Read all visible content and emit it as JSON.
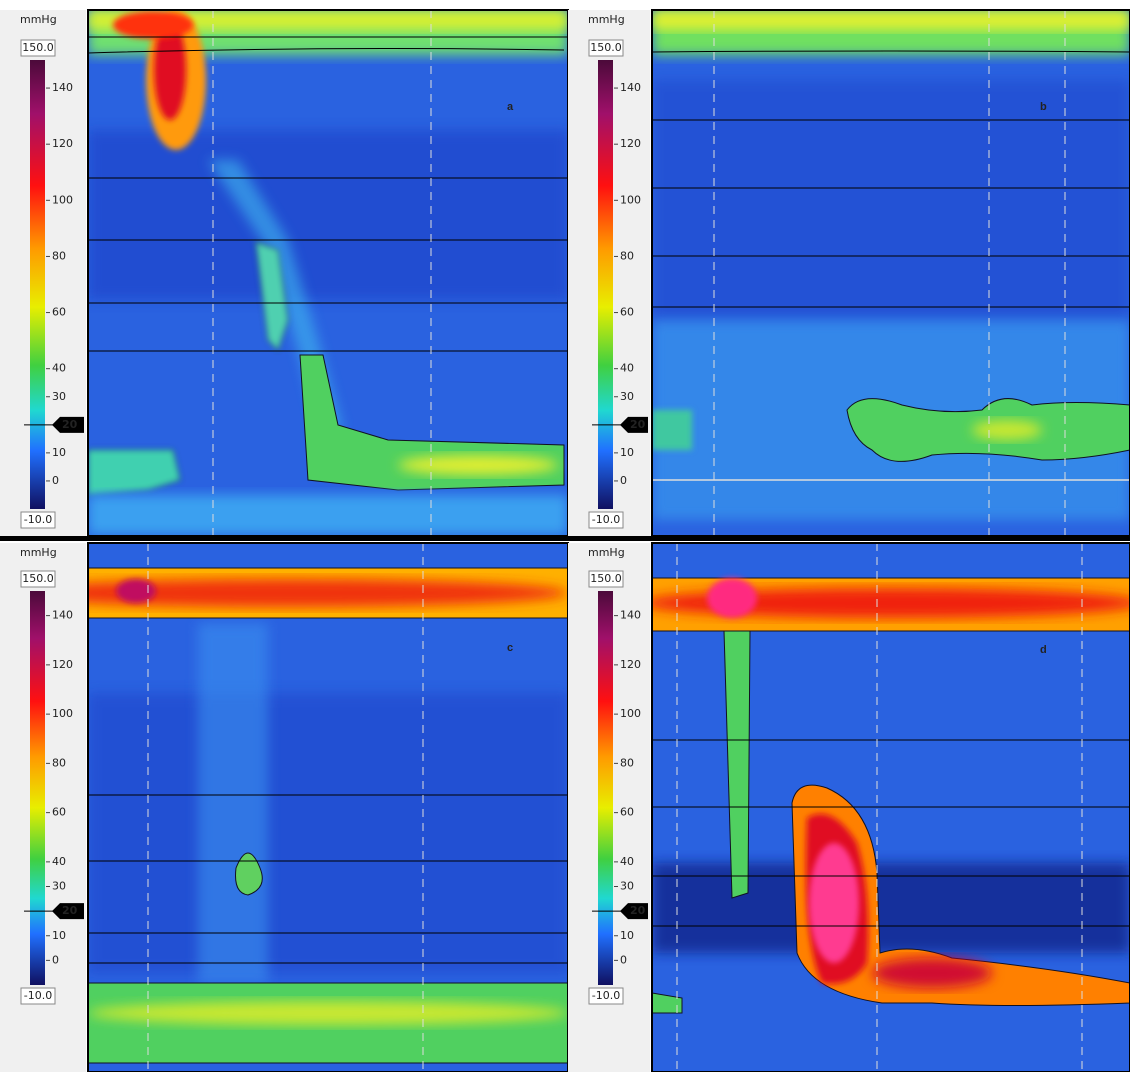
{
  "panels": [
    {
      "label": "a",
      "colorbar": {
        "unit": "mmHg",
        "range": [
          {
            "value": -10,
            "label": "-10.0"
          },
          {
            "value": 150,
            "label": "150.0"
          }
        ],
        "ticks": [
          140,
          120,
          100,
          80,
          60,
          40,
          30,
          10,
          0
        ],
        "marker": 20
      }
    },
    {
      "label": "b",
      "colorbar": {
        "unit": "mmHg",
        "range": [
          {
            "value": -10,
            "label": "-10.0"
          },
          {
            "value": 150,
            "label": "150.0"
          }
        ],
        "ticks": [
          140,
          120,
          100,
          80,
          60,
          40,
          30,
          10,
          0
        ],
        "marker": 20
      }
    },
    {
      "label": "c",
      "colorbar": {
        "unit": "mmHg",
        "range": [
          {
            "value": -10,
            "label": "-10.0"
          },
          {
            "value": 150,
            "label": "150.0"
          }
        ],
        "ticks": [
          140,
          120,
          100,
          80,
          60,
          40,
          30,
          10,
          0
        ],
        "marker": 20
      }
    },
    {
      "label": "d",
      "colorbar": {
        "unit": "mmHg",
        "range": [
          {
            "value": -10,
            "label": "-10.0"
          },
          {
            "value": 150,
            "label": "150.0"
          }
        ],
        "ticks": [
          140,
          120,
          100,
          80,
          60,
          40,
          30,
          10,
          0
        ],
        "marker": 20
      }
    }
  ]
}
